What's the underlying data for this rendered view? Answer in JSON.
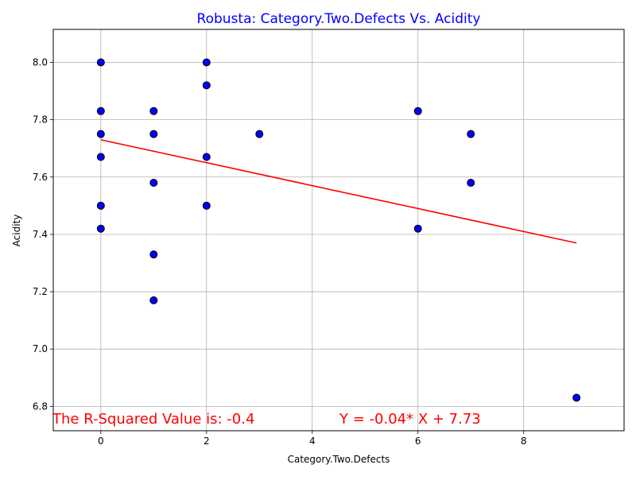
{
  "chart_data": {
    "type": "scatter",
    "title": "Robusta: Category.Two.Defects Vs. Acidity",
    "xlabel": "Category.Two.Defects",
    "ylabel": "Acidity",
    "xlim": [
      -0.9,
      9.9
    ],
    "ylim": [
      6.715,
      8.115
    ],
    "xticks": [
      0,
      2,
      4,
      6,
      8
    ],
    "yticks": [
      6.8,
      7.0,
      7.2,
      7.4,
      7.6,
      7.8,
      8.0
    ],
    "grid": true,
    "points": [
      {
        "x": 0,
        "y": 8.0
      },
      {
        "x": 0,
        "y": 7.83
      },
      {
        "x": 0,
        "y": 7.75
      },
      {
        "x": 0,
        "y": 7.67
      },
      {
        "x": 0,
        "y": 7.5
      },
      {
        "x": 0,
        "y": 7.42
      },
      {
        "x": 1,
        "y": 7.83
      },
      {
        "x": 1,
        "y": 7.75
      },
      {
        "x": 1,
        "y": 7.58
      },
      {
        "x": 1,
        "y": 7.33
      },
      {
        "x": 1,
        "y": 7.17
      },
      {
        "x": 2,
        "y": 8.0
      },
      {
        "x": 2,
        "y": 7.92
      },
      {
        "x": 2,
        "y": 7.67
      },
      {
        "x": 2,
        "y": 7.5
      },
      {
        "x": 3,
        "y": 7.75
      },
      {
        "x": 6,
        "y": 7.83
      },
      {
        "x": 6,
        "y": 7.42
      },
      {
        "x": 7,
        "y": 7.75
      },
      {
        "x": 7,
        "y": 7.58
      },
      {
        "x": 9,
        "y": 6.83
      }
    ],
    "regression": {
      "slope": -0.04,
      "intercept": 7.73,
      "x_range": [
        0,
        9
      ],
      "line_color": "#ff0000"
    },
    "annotations": {
      "r_squared_text": "The R-Squared Value is: -0.4",
      "equation_text": "Y = -0.04* X + 7.73"
    },
    "colors": {
      "title": "#0000ff",
      "point_fill": "#0000ff",
      "point_edge": "#000000",
      "annotation": "#ff0000",
      "grid": "#b0b0b0"
    }
  }
}
